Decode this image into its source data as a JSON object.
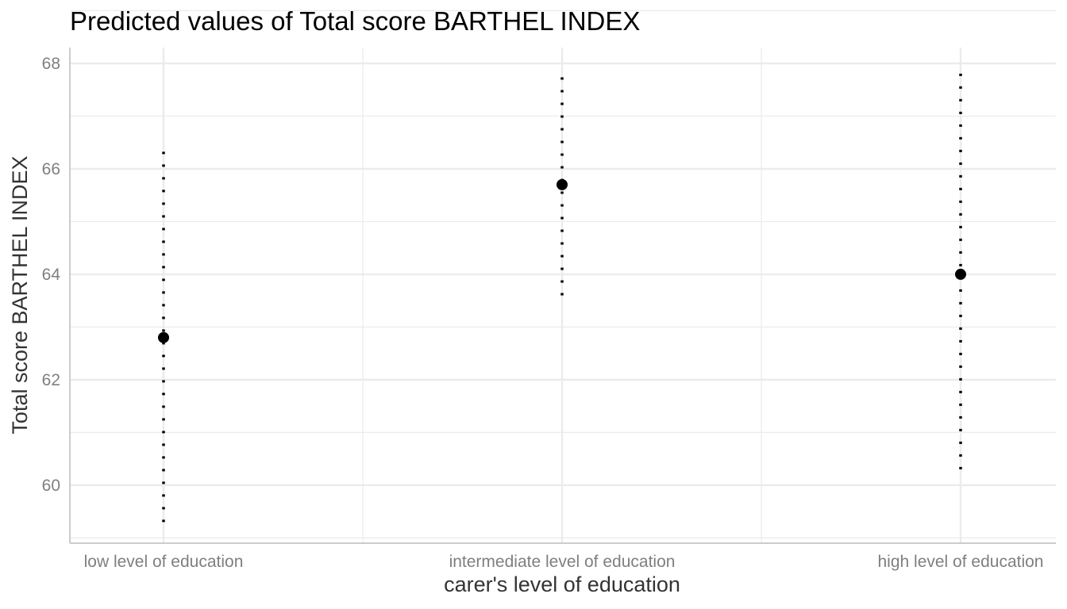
{
  "chart_data": {
    "type": "scatter",
    "title": "Predicted values of Total score BARTHEL INDEX",
    "xlabel": "carer's level of education",
    "ylabel": "Total score BARTHEL INDEX",
    "categories": [
      "low level of education",
      "intermediate level of education",
      "high level of education"
    ],
    "series": [
      {
        "values": [
          62.8,
          65.7,
          64.0
        ],
        "ci_low": [
          59.3,
          63.6,
          60.3
        ],
        "ci_high": [
          66.4,
          67.8,
          67.9
        ]
      }
    ],
    "yticks": [
      60,
      62,
      64,
      66,
      68
    ],
    "ylim": [
      58.9,
      68.3
    ],
    "grid": true,
    "legend": "none",
    "colors": {
      "point": "#000000",
      "grid": "#ebebeb",
      "axis": "#cccccc"
    }
  }
}
